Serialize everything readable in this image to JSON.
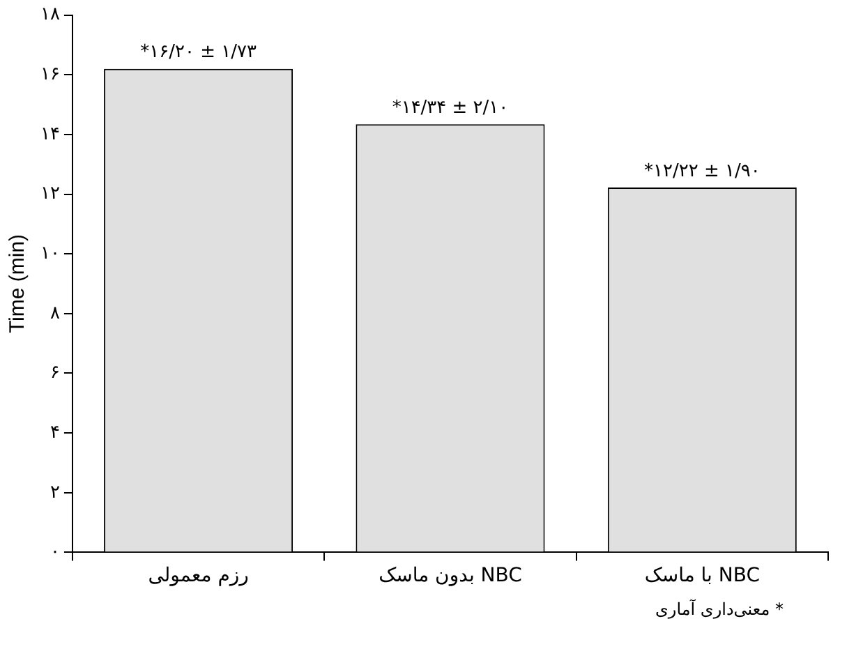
{
  "chart_data": {
    "type": "bar",
    "ylabel": "Time (min)",
    "categories": [
      "رزم معمولی",
      "بدون ماسک NBC",
      "با ماسک NBC"
    ],
    "values": [
      16.2,
      14.34,
      12.22
    ],
    "color": "#e0e0e0",
    "value_labels": [
      "*۱۶/۲۰ ± ۱/۷۳",
      "*۱۴/۳۴ ± ۲/۱۰",
      "*۱۲/۲۲ ± ۱/۹۰"
    ],
    "ylim": [
      0,
      18
    ],
    "yticks": [
      {
        "value": 0,
        "label": "۰"
      },
      {
        "value": 2,
        "label": "۲"
      },
      {
        "value": 4,
        "label": "۴"
      },
      {
        "value": 6,
        "label": "۶"
      },
      {
        "value": 8,
        "label": "۸"
      },
      {
        "value": 10,
        "label": "۱۰"
      },
      {
        "value": 12,
        "label": "۱۲"
      },
      {
        "value": 14,
        "label": "۱۴"
      },
      {
        "value": 16,
        "label": "۱۶"
      },
      {
        "value": 18,
        "label": "۱۸"
      }
    ],
    "grid": false,
    "legend": false,
    "annotations": [
      "* معنی‌داری آماری"
    ]
  }
}
